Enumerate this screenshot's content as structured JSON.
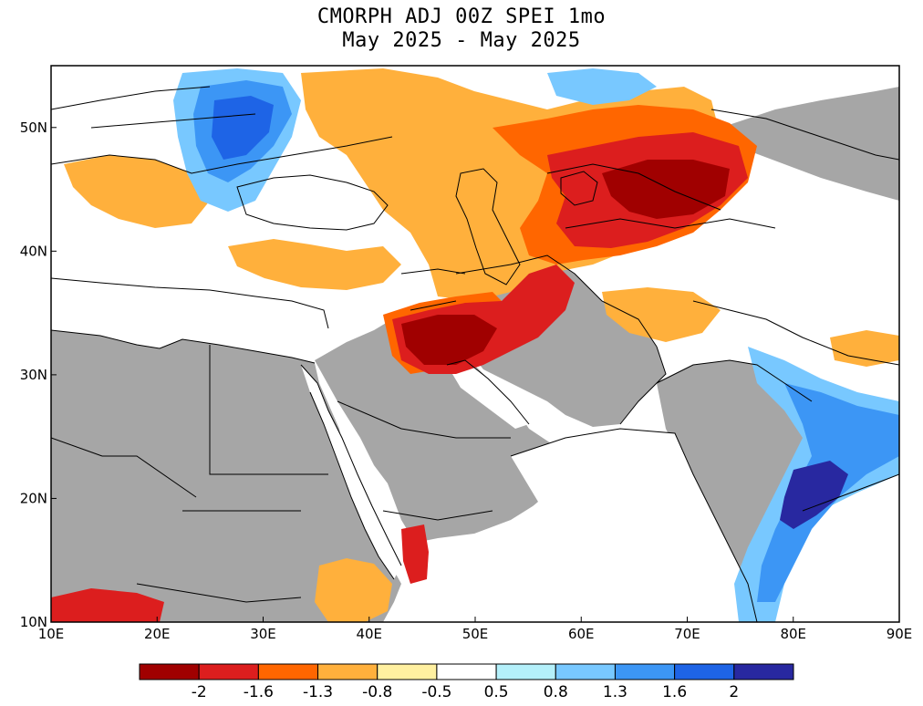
{
  "title_line1": "CMORPH ADJ 00Z SPEI 1mo",
  "title_line2": "May 2025 - May 2025",
  "map": {
    "lon_range": [
      10,
      90
    ],
    "lat_range": [
      10,
      55
    ],
    "x_ticks": [
      "10E",
      "20E",
      "30E",
      "40E",
      "50E",
      "60E",
      "70E",
      "80E",
      "90E"
    ],
    "y_ticks": [
      "10N",
      "20N",
      "30N",
      "40N",
      "50N"
    ],
    "y_tick_values": [
      10,
      20,
      30,
      40,
      50
    ],
    "no_data_color": "#a6a6a6",
    "water_color": "#ffffff"
  },
  "colorbar": {
    "colors": [
      "#a00000",
      "#dc1e1e",
      "#ff6600",
      "#ffb03c",
      "#fff0a0",
      "#ffffff",
      "#b4f0fa",
      "#78c8ff",
      "#3c96f5",
      "#1e64e6",
      "#2828a0"
    ],
    "labels": [
      "-2",
      "-1.6",
      "-1.3",
      "-0.8",
      "-0.5",
      "0.5",
      "0.8",
      "1.3",
      "1.6",
      "2"
    ]
  }
}
